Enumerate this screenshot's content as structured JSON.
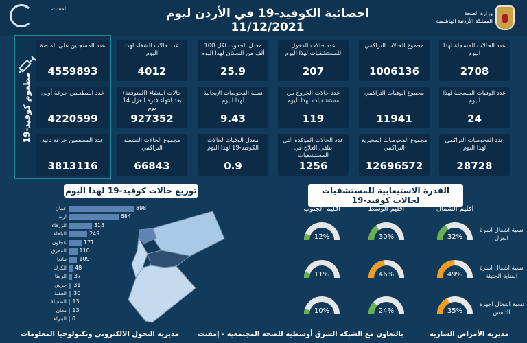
{
  "header": {
    "title": "احصائية الكوفيد-19 في الأردن ليوم",
    "date": "11/12/2021",
    "ministry": "وزارة الصحة",
    "kingdom": "المملكة الأردنية الهاشمية",
    "partner_logo": "امفنت"
  },
  "stats": [
    {
      "label": "عدد الحالات المسجلة لهذا اليوم",
      "value": "2708"
    },
    {
      "label": "مجموع الحالات التراكمي",
      "value": "1006136"
    },
    {
      "label": "عدد حالات الدخول للمستشفيات لهذا اليوم",
      "value": "207"
    },
    {
      "label": "معدل الحدوث لكل 100 ألف من السكان لهذا اليوم",
      "value": "25.9"
    },
    {
      "label": "عدد حالات الشفاء لهذا اليوم",
      "value": "4012"
    },
    {
      "label": "عدد الوفيات المسجلة لهذا اليوم",
      "value": "24"
    },
    {
      "label": "مجموع الوفيات التراكمي",
      "value": "11941"
    },
    {
      "label": "عدد حالات الخروج من مستشفيات لهذا اليوم",
      "value": "119"
    },
    {
      "label": "نسبة الفحوصات الإيجابية لهذا اليوم",
      "value": "9.43"
    },
    {
      "label": "حالات الشفاء (المتوقعة) بعد انتهاء فترة العزل 14 يوم",
      "value": "927352"
    },
    {
      "label": "عدد الفحوصات التراكمي لهذا اليوم",
      "value": "28728"
    },
    {
      "label": "مجموع الفحوصات المخبرية التراكمي",
      "value": "12696572"
    },
    {
      "label": "عدد الحالات المؤكدة التي تتلقى العلاج في المستشفيات",
      "value": "1256"
    },
    {
      "label": "معدل الوفيات لحالات الكوفيد-19 لهذا اليوم",
      "value": "0.9"
    },
    {
      "label": "مجموع الحالات النشطة التراكمي",
      "value": "66843"
    }
  ],
  "vaccination": {
    "title": "مطعوم كوفيد-19",
    "icon": "syringe-icon",
    "items": [
      {
        "label": "عدد المسجلين على المنصة",
        "value": "4559893"
      },
      {
        "label": "عدد المطعمين جرعة أولى",
        "value": "4220599"
      },
      {
        "label": "عدد المطعمين جرعة ثانية",
        "value": "3813116"
      }
    ]
  },
  "chart_data": {
    "type": "bar",
    "orientation": "horizontal",
    "title": "توزيع حالات كوفيد-19 لهذا اليوم",
    "categories": [
      "عمان",
      "اربد",
      "الزرقاء",
      "البلقاء",
      "عجلون",
      "المفرق",
      "مادبا",
      "الكرك",
      "الرمثا",
      "جرش",
      "العقبة",
      "الطفيلة",
      "معان",
      "البتراء"
    ],
    "values": [
      898,
      684,
      315,
      249,
      171,
      110,
      109,
      48,
      37,
      31,
      30,
      13,
      13,
      0
    ],
    "color": "#5b82b0"
  },
  "capacity": {
    "title": "القدرة الاستيعابية للمستشفيات لحالات كوفيد-19",
    "regions": [
      "اقليم الشمال",
      "اقليم الوسط",
      "اقليم الجنوب"
    ],
    "rows": [
      {
        "label": "نسبة اشغال اسرة العزل",
        "values": [
          32,
          30,
          12
        ]
      },
      {
        "label": "نسبة اشغال اسرة العناية الحثيثة",
        "values": [
          49,
          46,
          11
        ]
      },
      {
        "label": "نسبة اشغال اجهزة التنفس",
        "values": [
          35,
          24,
          10
        ]
      }
    ],
    "colors": {
      "low": "#6ab04c",
      "high": "#f39c1f",
      "track": "#e6e6e6"
    }
  },
  "footer": {
    "left": "مديرية التحول الالكتروني وتكنولوجيا المعلومات",
    "center": "بالتعاون مع الشبكة الشرق أوسطية للصحة المجتمعية - إمفنت",
    "right": "مديرية الأمراض السارية"
  }
}
